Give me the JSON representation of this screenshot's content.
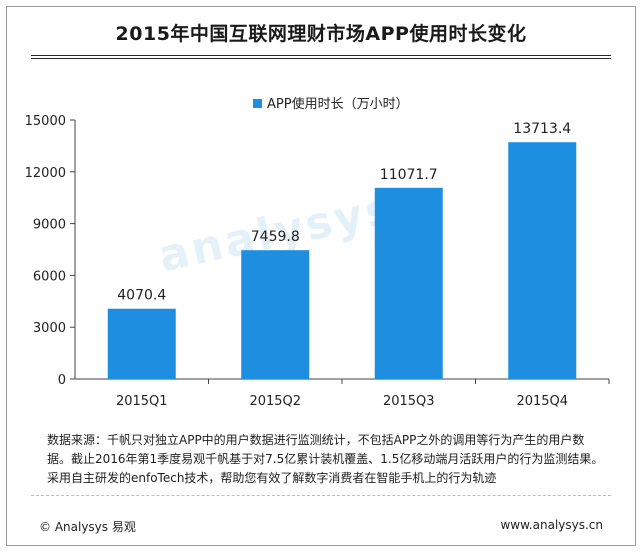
{
  "title": "2015年中国互联网理财市场APP使用时长变化",
  "chart_data": {
    "type": "bar",
    "categories": [
      "2015Q1",
      "2015Q2",
      "2015Q3",
      "2015Q4"
    ],
    "series": [
      {
        "name": "APP使用时长（万小时）",
        "values": [
          4070.4,
          7459.8,
          11071.7,
          13713.4
        ],
        "color": "#1e8fe0"
      }
    ],
    "value_labels": [
      "4070.4",
      "7459.8",
      "11071.7",
      "13713.4"
    ],
    "yticks": [
      "0",
      "3000",
      "6000",
      "9000",
      "12000",
      "15000"
    ],
    "ylim": [
      0,
      15000
    ],
    "legend_position": "top",
    "grid": false
  },
  "watermark": "analysys 易观",
  "notes": "数据来源：千帆只对独立APP中的用户数据进行监测统计，不包括APP之外的调用等行为产生的用户数据。截止2016年第1季度易观千帆基于对7.5亿累计装机覆盖、1.5亿移动端月活跃用户的行为监测结果。采用自主研发的enfoTech技术，帮助您有效了解数字消费者在智能手机上的行为轨迹",
  "footer": {
    "copyright": "© Analysys 易观",
    "url": "www.analysys.cn"
  }
}
